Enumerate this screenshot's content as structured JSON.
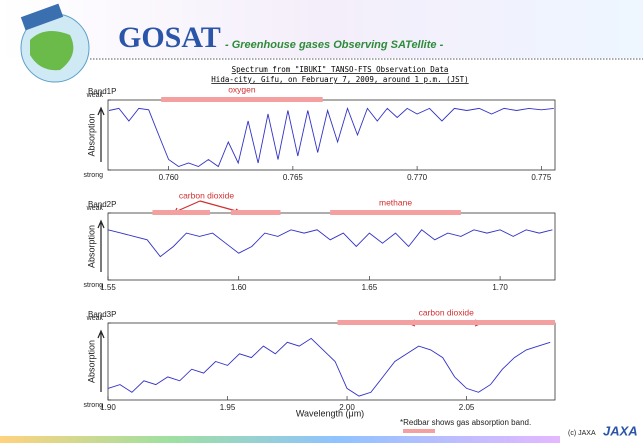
{
  "header": {
    "title": "GOSAT",
    "subtitle": "- Greenhouse gases Observing SATellite -"
  },
  "figure": {
    "title_lines": [
      "Spectrum from \"IBUKI\" TANSO-FTS Observation Data",
      "Hida-city, Gifu, on February 7, 2009, around 1 p.m. (JST)"
    ]
  },
  "footnote": "*Redbar shows gas absorption band.",
  "credit": "(c) JAXA",
  "logo": "JAXA",
  "chart_data": [
    {
      "type": "line",
      "title": "Band1P",
      "y_label": "Absorption",
      "xlim": [
        0.75756,
        0.77555
      ],
      "ylim": [
        1,
        0
      ],
      "xticks": [
        {
          "value": 0.76,
          "label": "0.760"
        },
        0.765,
        {
          "value": 0.77,
          "label": "0.770"
        },
        0.775
      ],
      "yticks": [
        {
          "value": 0,
          "label": "weak"
        },
        {
          "value": 1,
          "label": "strong"
        }
      ],
      "gases": [
        {
          "label": "oxygen",
          "ranges": [
            [
              0.7597,
              0.7662
            ]
          ]
        }
      ],
      "series": [
        {
          "color": "#3232c8",
          "x": [
            0.7576,
            0.758,
            0.7584,
            0.7588,
            0.7592,
            0.7596,
            0.76,
            0.7604,
            0.7608,
            0.7612,
            0.7616,
            0.762,
            0.7624,
            0.7628,
            0.7632,
            0.7636,
            0.764,
            0.7644,
            0.7648,
            0.7652,
            0.7656,
            0.766,
            0.7664,
            0.7668,
            0.7672,
            0.7676,
            0.768,
            0.7684,
            0.7688,
            0.7692,
            0.7696,
            0.77,
            0.7705,
            0.771,
            0.7715,
            0.772,
            0.7725,
            0.773,
            0.7735,
            0.774,
            0.7745,
            0.775,
            0.7755
          ],
          "values": [
            0.15,
            0.12,
            0.3,
            0.12,
            0.14,
            0.5,
            0.85,
            0.95,
            0.9,
            0.95,
            0.85,
            0.95,
            0.6,
            0.9,
            0.3,
            0.9,
            0.2,
            0.85,
            0.15,
            0.8,
            0.15,
            0.75,
            0.15,
            0.6,
            0.12,
            0.5,
            0.12,
            0.3,
            0.12,
            0.25,
            0.12,
            0.2,
            0.12,
            0.3,
            0.12,
            0.15,
            0.12,
            0.2,
            0.12,
            0.15,
            0.12,
            0.14,
            0.12
          ]
        }
      ]
    },
    {
      "type": "line",
      "title": "Band2P",
      "y_label": "Absorption",
      "xlim": [
        1.55,
        1.721
      ],
      "ylim": [
        1,
        0
      ],
      "xticks": [
        1.55,
        {
          "value": 1.6,
          "label": "1.60"
        },
        1.65,
        {
          "value": 1.7,
          "label": "1.70"
        }
      ],
      "yticks": [
        {
          "value": 0,
          "label": "weak"
        },
        {
          "value": 1,
          "label": "strong"
        }
      ],
      "gases": [
        {
          "label": "carbon dioxide",
          "ranges": [
            [
              1.567,
              1.589
            ],
            [
              1.597,
              1.616
            ]
          ]
        },
        {
          "label": "methane",
          "ranges": [
            [
              1.635,
              1.685
            ]
          ]
        }
      ],
      "series": [
        {
          "color": "#3232c8",
          "x": [
            1.55,
            1.555,
            1.56,
            1.565,
            1.57,
            1.575,
            1.58,
            1.585,
            1.59,
            1.595,
            1.6,
            1.605,
            1.61,
            1.615,
            1.62,
            1.625,
            1.63,
            1.635,
            1.64,
            1.645,
            1.65,
            1.655,
            1.66,
            1.665,
            1.67,
            1.675,
            1.68,
            1.685,
            1.69,
            1.695,
            1.7,
            1.705,
            1.71,
            1.715,
            1.72
          ],
          "values": [
            0.25,
            0.3,
            0.35,
            0.4,
            0.65,
            0.5,
            0.3,
            0.35,
            0.3,
            0.45,
            0.6,
            0.5,
            0.3,
            0.35,
            0.25,
            0.3,
            0.25,
            0.4,
            0.3,
            0.5,
            0.3,
            0.45,
            0.3,
            0.5,
            0.25,
            0.4,
            0.3,
            0.35,
            0.25,
            0.3,
            0.25,
            0.35,
            0.25,
            0.3,
            0.25
          ]
        }
      ]
    },
    {
      "type": "line",
      "title": "Band3P",
      "y_label": "Absorption",
      "x_label": "Wavelength (μm)",
      "xlim": [
        1.9,
        2.087
      ],
      "ylim": [
        1,
        0
      ],
      "xticks": [
        {
          "value": 1.9,
          "label": "1.90"
        },
        1.95,
        {
          "value": 2.0,
          "label": "2.00"
        },
        2.05
      ],
      "yticks": [
        {
          "value": 0,
          "label": "weak"
        },
        {
          "value": 1,
          "label": "strong"
        }
      ],
      "gases": [
        {
          "label": "carbon dioxide",
          "ranges": [
            [
              1.996,
              2.087
            ]
          ]
        }
      ],
      "series": [
        {
          "color": "#3232c8",
          "x": [
            1.9,
            1.905,
            1.91,
            1.915,
            1.92,
            1.925,
            1.93,
            1.935,
            1.94,
            1.945,
            1.95,
            1.955,
            1.96,
            1.965,
            1.97,
            1.975,
            1.98,
            1.985,
            1.99,
            1.995,
            2.0,
            2.005,
            2.01,
            2.015,
            2.02,
            2.025,
            2.03,
            2.035,
            2.04,
            2.045,
            2.05,
            2.055,
            2.06,
            2.065,
            2.07,
            2.075,
            2.08,
            2.085
          ],
          "values": [
            0.85,
            0.8,
            0.9,
            0.75,
            0.8,
            0.7,
            0.75,
            0.6,
            0.65,
            0.5,
            0.55,
            0.4,
            0.45,
            0.3,
            0.4,
            0.25,
            0.3,
            0.2,
            0.35,
            0.5,
            0.85,
            0.95,
            0.9,
            0.7,
            0.5,
            0.4,
            0.3,
            0.35,
            0.45,
            0.7,
            0.85,
            0.9,
            0.8,
            0.6,
            0.45,
            0.35,
            0.3,
            0.25
          ]
        }
      ]
    }
  ]
}
